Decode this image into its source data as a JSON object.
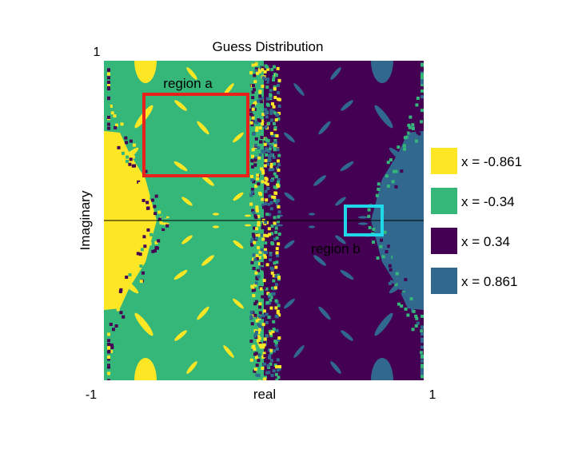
{
  "chart_data": {
    "type": "heatmap",
    "title": "Guess Distribution",
    "xlabel": "real",
    "ylabel": "Imaginary",
    "x_ticks": [
      "-1",
      "1"
    ],
    "y_ticks": [
      "1"
    ],
    "xlim": [
      -1,
      1
    ],
    "ylim": [
      -1,
      1
    ],
    "legend_position": "right",
    "legend": [
      {
        "label": "x = -0.861",
        "color": "#fde725"
      },
      {
        "label": "x = -0.34",
        "color": "#35b779"
      },
      {
        "label": "x = 0.34",
        "color": "#440154"
      },
      {
        "label": "x = 0.861",
        "color": "#31688e"
      }
    ],
    "horizontal_line": {
      "y": 0,
      "color": "#000000"
    },
    "annotations": [
      {
        "label": "region a",
        "color": "#e8211a",
        "x_range": [
          -0.75,
          -0.1
        ],
        "y_range": [
          0.28,
          0.79
        ]
      },
      {
        "label": "region b",
        "color": "#1fd8e8",
        "x_range": [
          0.51,
          0.74
        ],
        "y_range": [
          -0.09,
          0.09
        ]
      }
    ]
  }
}
